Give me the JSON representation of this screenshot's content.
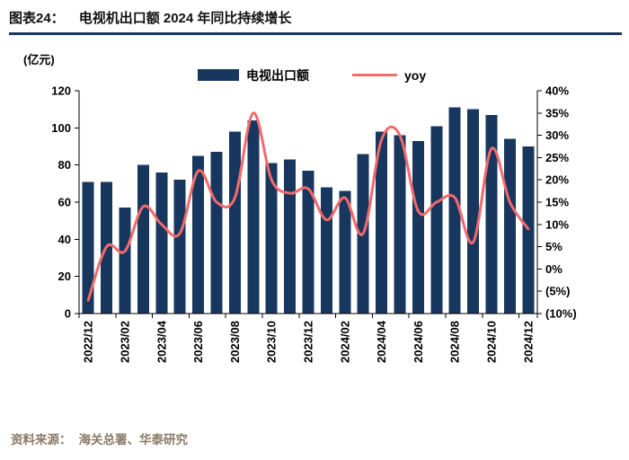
{
  "header": {
    "label": "图表24：",
    "title": "电视机出口额 2024 年同比持续增长"
  },
  "chart": {
    "axis_unit_label": "(亿元)",
    "legend_bar_label": "电视出口额",
    "legend_line_label": "yoy",
    "bar_color": "#17375E",
    "line_color": "#F4696B"
  },
  "chart_data": {
    "type": "bar+line",
    "categories": [
      "2022/12",
      "2023/01",
      "2023/02",
      "2023/03",
      "2023/04",
      "2023/05",
      "2023/06",
      "2023/07",
      "2023/08",
      "2023/09",
      "2023/10",
      "2023/11",
      "2023/12",
      "2024/01",
      "2024/02",
      "2024/03",
      "2024/04",
      "2024/05",
      "2024/06",
      "2024/07",
      "2024/08",
      "2024/09",
      "2024/10",
      "2024/11",
      "2024/12"
    ],
    "x_tick_labels": [
      "2022/12",
      "2023/02",
      "2023/04",
      "2023/06",
      "2023/08",
      "2023/10",
      "2023/12",
      "2024/02",
      "2024/04",
      "2024/06",
      "2024/08",
      "2024/10",
      "2024/12"
    ],
    "series": [
      {
        "name": "电视出口额",
        "type": "bar",
        "axis": "left",
        "unit": "亿元",
        "color": "#17375E",
        "values": [
          71,
          71,
          57,
          80,
          76,
          72,
          85,
          87,
          98,
          104,
          81,
          83,
          77,
          68,
          66,
          86,
          98,
          96,
          93,
          101,
          111,
          110,
          107,
          94,
          90
        ]
      },
      {
        "name": "yoy",
        "type": "line",
        "axis": "right",
        "unit": "%",
        "color": "#F4696B",
        "values": [
          -7,
          5,
          4,
          14,
          10,
          8,
          22,
          15,
          16,
          35,
          20,
          17,
          18,
          11,
          16,
          8,
          29,
          30,
          13,
          15,
          16,
          6,
          27,
          15,
          9
        ]
      }
    ],
    "left_axis": {
      "title": "(亿元)",
      "min": 0,
      "max": 120,
      "tick_step": 20
    },
    "right_axis": {
      "min": -10,
      "max": 40,
      "tick_step": 5,
      "negative_format": "parentheses",
      "tick_labels": [
        "(10%)",
        "(5%)",
        "0%",
        "5%",
        "10%",
        "15%",
        "20%",
        "25%",
        "30%",
        "35%",
        "40%"
      ]
    },
    "title": "电视机出口额 2024 年同比持续增长",
    "grid": false,
    "legend_position": "top-center"
  },
  "footer": {
    "label": "资料来源：",
    "text": "海关总署、华泰研究"
  }
}
